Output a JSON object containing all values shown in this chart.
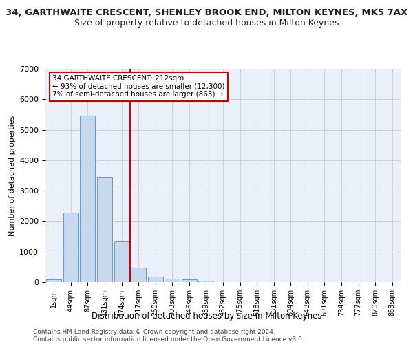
{
  "title": "34, GARTHWAITE CRESCENT, SHENLEY BROOK END, MILTON KEYNES, MK5 7AX",
  "subtitle": "Size of property relative to detached houses in Milton Keynes",
  "xlabel": "Distribution of detached houses by size in Milton Keynes",
  "ylabel": "Number of detached properties",
  "footer_line1": "Contains HM Land Registry data © Crown copyright and database right 2024.",
  "footer_line2": "Contains public sector information licensed under the Open Government Licence v3.0.",
  "categories": [
    "1sqm",
    "44sqm",
    "87sqm",
    "131sqm",
    "174sqm",
    "217sqm",
    "260sqm",
    "303sqm",
    "346sqm",
    "389sqm",
    "432sqm",
    "475sqm",
    "518sqm",
    "561sqm",
    "604sqm",
    "648sqm",
    "691sqm",
    "734sqm",
    "777sqm",
    "820sqm",
    "863sqm"
  ],
  "values": [
    80,
    2280,
    5470,
    3450,
    1330,
    480,
    170,
    120,
    90,
    55,
    0,
    0,
    0,
    0,
    0,
    0,
    0,
    0,
    0,
    0,
    0
  ],
  "bar_color": "#c8d9ee",
  "bar_edge_color": "#6699cc",
  "highlight_line_color": "#cc0000",
  "annotation_text": "34 GARTHWAITE CRESCENT: 212sqm\n← 93% of detached houses are smaller (12,300)\n7% of semi-detached houses are larger (863) →",
  "annotation_box_color": "#cc0000",
  "ylim": [
    0,
    7000
  ],
  "yticks": [
    0,
    1000,
    2000,
    3000,
    4000,
    5000,
    6000,
    7000
  ],
  "bg_color": "#ffffff",
  "axes_bg_color": "#eaeff8",
  "grid_color": "#c8d0e0"
}
